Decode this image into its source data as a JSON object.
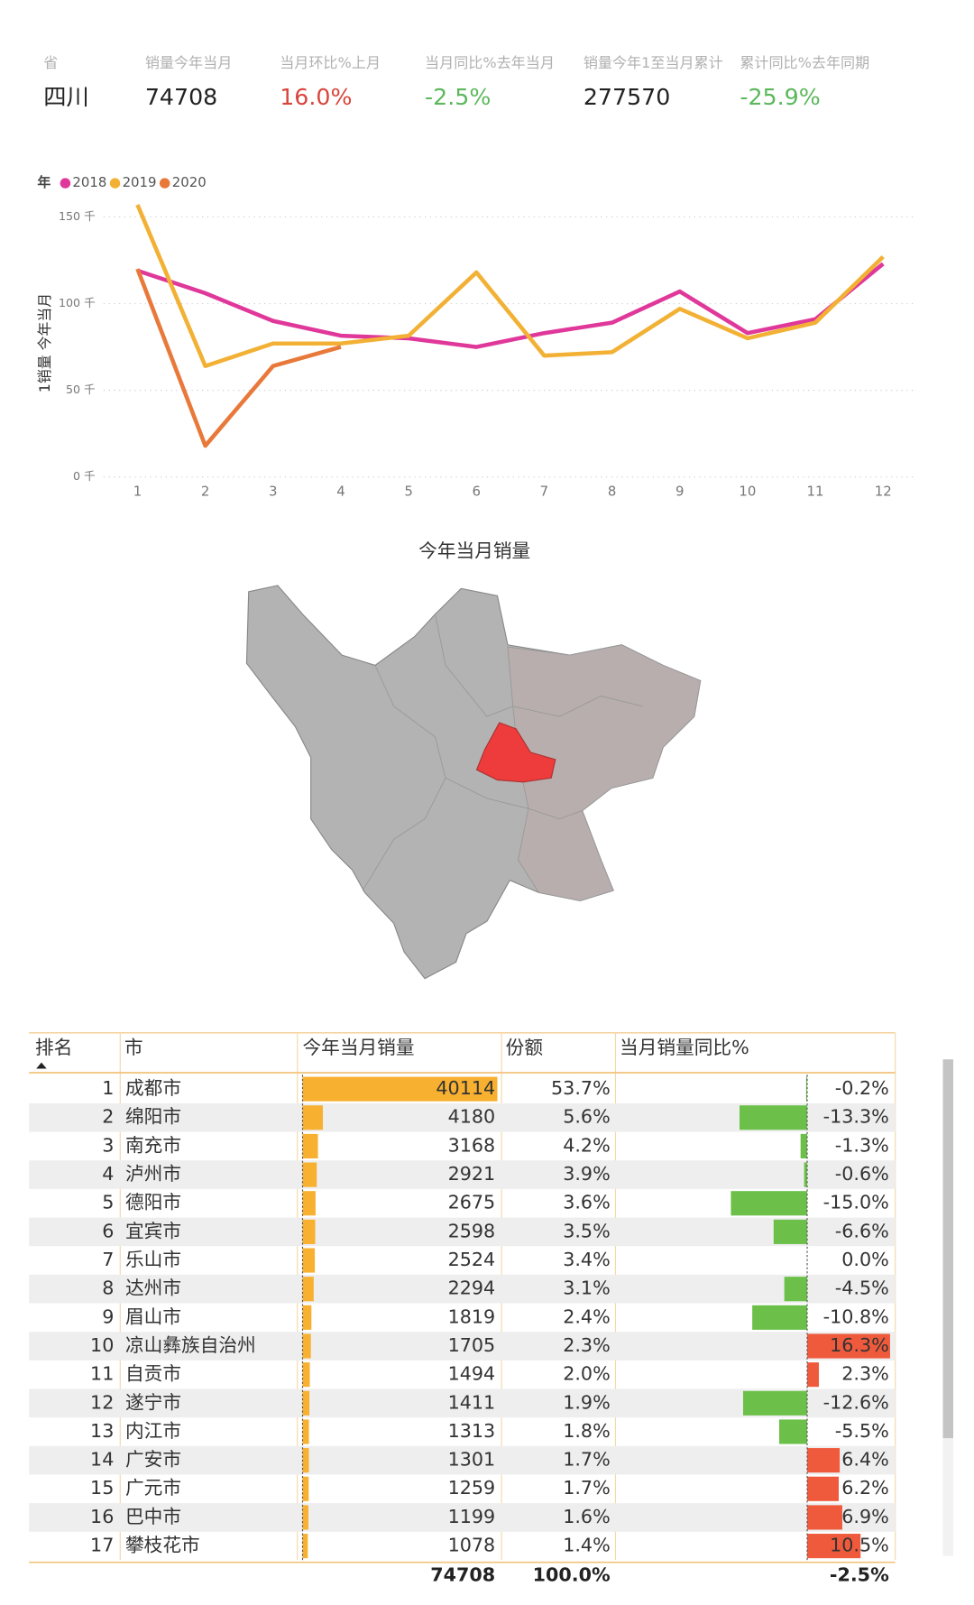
{
  "kpis": [
    {
      "label": "省",
      "value": "四川",
      "color": "#222222"
    },
    {
      "label": "销量今年当月",
      "value": "74708",
      "color": "#222222"
    },
    {
      "label": "当月环比%上月",
      "value": "16.0%",
      "color": "#d9453c"
    },
    {
      "label": "当月同比%去年当月",
      "value": "-2.5%",
      "color": "#5cb85c"
    },
    {
      "label": "销量今年1至当月累计",
      "value": "277570",
      "color": "#222222"
    },
    {
      "label": "累计同比%去年同期",
      "value": "-25.9%",
      "color": "#5cb85c"
    }
  ],
  "chart_data": {
    "type": "line",
    "legend_title": "年",
    "y_label": "1销量 今年当月",
    "categories": [
      "1",
      "2",
      "3",
      "4",
      "5",
      "6",
      "7",
      "8",
      "9",
      "10",
      "11",
      "12"
    ],
    "series": [
      {
        "name": "2018",
        "color": "#e0389a",
        "values": [
          119,
          106,
          90,
          81.5,
          80,
          75,
          83,
          89,
          107,
          83,
          91,
          123
        ]
      },
      {
        "name": "2019",
        "color": "#f2b135",
        "values": [
          157,
          64,
          77,
          77,
          81.5,
          118,
          70,
          72,
          97,
          80,
          89,
          127
        ]
      },
      {
        "name": "2020",
        "color": "#e8793a",
        "values": [
          120,
          18,
          64,
          75,
          null,
          null,
          null,
          null,
          null,
          null,
          null,
          null
        ]
      }
    ],
    "ylim": [
      0,
      160
    ],
    "yticks": [
      {
        "value": 0,
        "label": "0 千"
      },
      {
        "value": 50,
        "label": "50 千"
      },
      {
        "value": 100,
        "label": "100 千"
      },
      {
        "value": 150,
        "label": "150 千"
      }
    ],
    "grid": true
  },
  "map": {
    "title": "今年当月销量"
  },
  "table": {
    "columns": [
      "排名",
      "市",
      "今年当月销量",
      "份额",
      "当月销量同比%"
    ],
    "bar_color": "#f7b030",
    "neg_color": "#6cc04a",
    "pos_color": "#ef5a3c",
    "rows": [
      {
        "rank": 1,
        "city": "成都市",
        "sales": 40114,
        "share": "53.7%",
        "yoy": -0.2,
        "yoy_label": "-0.2%"
      },
      {
        "rank": 2,
        "city": "绵阳市",
        "sales": 4180,
        "share": "5.6%",
        "yoy": -13.3,
        "yoy_label": "-13.3%"
      },
      {
        "rank": 3,
        "city": "南充市",
        "sales": 3168,
        "share": "4.2%",
        "yoy": -1.3,
        "yoy_label": "-1.3%"
      },
      {
        "rank": 4,
        "city": "泸州市",
        "sales": 2921,
        "share": "3.9%",
        "yoy": -0.6,
        "yoy_label": "-0.6%"
      },
      {
        "rank": 5,
        "city": "德阳市",
        "sales": 2675,
        "share": "3.6%",
        "yoy": -15.0,
        "yoy_label": "-15.0%"
      },
      {
        "rank": 6,
        "city": "宜宾市",
        "sales": 2598,
        "share": "3.5%",
        "yoy": -6.6,
        "yoy_label": "-6.6%"
      },
      {
        "rank": 7,
        "city": "乐山市",
        "sales": 2524,
        "share": "3.4%",
        "yoy": 0.0,
        "yoy_label": "0.0%"
      },
      {
        "rank": 8,
        "city": "达州市",
        "sales": 2294,
        "share": "3.1%",
        "yoy": -4.5,
        "yoy_label": "-4.5%"
      },
      {
        "rank": 9,
        "city": "眉山市",
        "sales": 1819,
        "share": "2.4%",
        "yoy": -10.8,
        "yoy_label": "-10.8%"
      },
      {
        "rank": 10,
        "city": "凉山彝族自治州",
        "sales": 1705,
        "share": "2.3%",
        "yoy": 16.3,
        "yoy_label": "16.3%"
      },
      {
        "rank": 11,
        "city": "自贡市",
        "sales": 1494,
        "share": "2.0%",
        "yoy": 2.3,
        "yoy_label": "2.3%"
      },
      {
        "rank": 12,
        "city": "遂宁市",
        "sales": 1411,
        "share": "1.9%",
        "yoy": -12.6,
        "yoy_label": "-12.6%"
      },
      {
        "rank": 13,
        "city": "内江市",
        "sales": 1313,
        "share": "1.8%",
        "yoy": -5.5,
        "yoy_label": "-5.5%"
      },
      {
        "rank": 14,
        "city": "广安市",
        "sales": 1301,
        "share": "1.7%",
        "yoy": 6.4,
        "yoy_label": "6.4%"
      },
      {
        "rank": 15,
        "city": "广元市",
        "sales": 1259,
        "share": "1.7%",
        "yoy": 6.2,
        "yoy_label": "6.2%"
      },
      {
        "rank": 16,
        "city": "巴中市",
        "sales": 1199,
        "share": "1.6%",
        "yoy": 6.9,
        "yoy_label": "6.9%"
      },
      {
        "rank": 17,
        "city": "攀枝花市",
        "sales": 1078,
        "share": "1.4%",
        "yoy": 10.5,
        "yoy_label": "10.5%"
      }
    ],
    "total": {
      "sales": 74708,
      "share": "100.0%",
      "yoy": "-2.5%"
    }
  }
}
